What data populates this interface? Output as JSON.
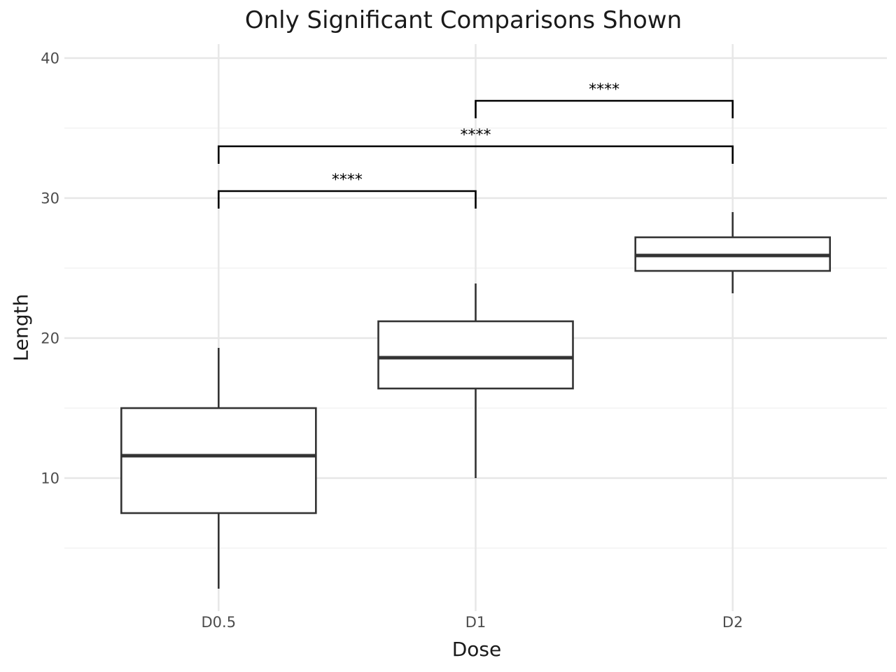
{
  "chart_data": {
    "type": "boxplot",
    "title": "Only Significant Comparisons Shown",
    "xlabel": "Dose",
    "ylabel": "Length",
    "categories": [
      "D0.5",
      "D1",
      "D2"
    ],
    "y_ticks": [
      10,
      20,
      30,
      40
    ],
    "y_minor_ticks": [
      5,
      15,
      25,
      35
    ],
    "ylim": [
      0.5,
      41
    ],
    "grid": "on",
    "legend": "none",
    "boxes": [
      {
        "category": "D0.5",
        "whisker_low": 2.1,
        "q1": 7.5,
        "median": 11.6,
        "q3": 15.0,
        "whisker_high": 19.3
      },
      {
        "category": "D1",
        "whisker_low": 10.0,
        "q1": 16.4,
        "median": 18.6,
        "q3": 21.2,
        "whisker_high": 23.9
      },
      {
        "category": "D2",
        "whisker_low": 23.2,
        "q1": 24.8,
        "median": 25.9,
        "q3": 27.2,
        "whisker_high": 29.0
      }
    ],
    "comparisons": [
      {
        "group1": "D0.5",
        "group2": "D1",
        "label": "****",
        "y_position": 30.5
      },
      {
        "group1": "D0.5",
        "group2": "D2",
        "label": "****",
        "y_position": 33.7
      },
      {
        "group1": "D1",
        "group2": "D2",
        "label": "****",
        "y_position": 36.95
      }
    ],
    "colors": {
      "background": "#ffffff",
      "box_stroke": "#333333",
      "box_fill": "#ffffff",
      "bracket": "#000000",
      "significance_text": "#000000",
      "grid_major": "#e7e7e7",
      "grid_minor": "#f4f4f4",
      "tick_label": "#4d4d4d",
      "axis_title": "#1a1a1a"
    }
  }
}
